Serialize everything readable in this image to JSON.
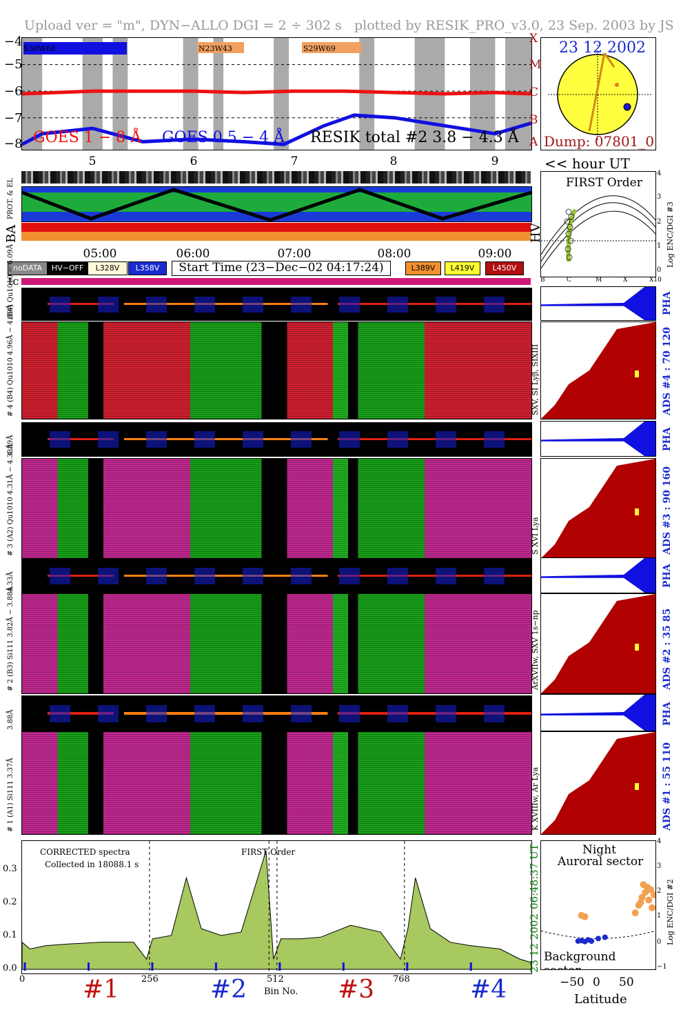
{
  "header": {
    "upload": "Upload ver = \"m\", DYN−ALLO DGI =   2 ÷ 302 s",
    "plotted": "plotted by RESIK_PRO_v3.0, 23 Sep. 2003 by JS"
  },
  "goes": {
    "yticks": [
      "−4",
      "−5",
      "−6",
      "−7",
      "−8"
    ],
    "classes": [
      "X",
      "M",
      "C",
      "B",
      "A"
    ],
    "legend_goes1": "GOES 1 − 8 Å",
    "legend_goes05": "GOES 0.5 − 4 Å",
    "legend_resik": "RESIK total #2  3.8 − 4.3 Å",
    "regions": [
      "S30W68",
      "N23W43",
      "S29W69"
    ],
    "colors": {
      "goes1": "#ee1111",
      "goes05": "#1010e0",
      "resik": "#9cc23c",
      "orange": "#f2a060"
    }
  },
  "sun": {
    "date": "23 12 2002",
    "dump": "Dump: 07801_0"
  },
  "hours": [
    "5",
    "6",
    "7",
    "8",
    "9"
  ],
  "hour_ut_label": "<< hour UT",
  "orbit_labels": {
    "prot_el": "PROT. & EL",
    "ba": "BA",
    "hv": "HV"
  },
  "times": [
    "05:00",
    "06:00",
    "07:00",
    "08:00",
    "09:00"
  ],
  "keys": {
    "nodata": "noDATA",
    "hvoff": "HV−OFF",
    "v328": "L328V",
    "v358": "L358V",
    "v389": "L389V",
    "v419": "L419V",
    "v450": "L450V",
    "start_time": "Start Time (23−Dec−02 04:17:24)"
  },
  "tc_label": "tc",
  "first_order": {
    "title": "FIRST Order",
    "ylabel": "Log ENC/DGI #3",
    "yticks": [
      "0",
      "1",
      "2",
      "3",
      "4"
    ],
    "xticks": [
      "B",
      "C",
      "M",
      "X",
      "X10"
    ]
  },
  "channels": [
    {
      "pha_label": "(B4) Qu1010 − 6.09Å",
      "label": "# 4 (B4) Qu1010 4.96Å − 4.89Å",
      "lines": "SXV, SI Lyβ, SIXIII",
      "ads": "ADS #4 :   70 120",
      "pha": "PHA"
    },
    {
      "pha_label": "4.89Å",
      "label": "# 3 (A2) Qu1010 4.31Å − 4.33Å",
      "lines": "S XVI Lya",
      "ads": "ADS #3 :   90 160",
      "pha": "PHA"
    },
    {
      "pha_label": "4.33Å",
      "label": "# 2 (B3) Si111 3.82Å − 3.88Å",
      "lines": "ArXVIIw, SXV 1s−np",
      "ads": "ADS #2 :   35  85",
      "pha": "PHA"
    },
    {
      "pha_label": "3.88Å",
      "label": "# 1 (A1) Si111 3.37Å",
      "lines": "K XVIIIw, Ar Lya",
      "ads": "ADS #1 :   55 110",
      "pha": "PHA"
    }
  ],
  "spectra": {
    "note1": "CORRECTED spectra",
    "note2": "Collected in 18088.1 s",
    "order": "FIRST Order",
    "yticks": [
      "0.0",
      "0.1",
      "0.2",
      "0.3"
    ],
    "xticks": [
      "0",
      "256",
      "512",
      "768"
    ],
    "xlabel": "Bin No.",
    "time": "06:48:37 UT",
    "date": "23 12 2002"
  },
  "channel_numbers": [
    "#1",
    "#2",
    "#3",
    "#4"
  ],
  "aurora": {
    "night": "Night",
    "auroral": "Auroral sector",
    "background": "Background sector",
    "xlabel": "Latitude",
    "xticks": [
      "−50",
      "0",
      "50"
    ],
    "ylabel": "Log ENC/DGI #2",
    "yticks": [
      "−1",
      "0",
      "1",
      "2",
      "3",
      "4"
    ]
  },
  "chart_data": [
    {
      "type": "line",
      "title": "",
      "x_range": [
        4.3,
        9.36
      ],
      "ylim": [
        -8.2,
        -4
      ],
      "ylabel": "",
      "series": [
        {
          "name": "GOES 1 − 8 Å",
          "x": [
            4.3,
            5.0,
            5.5,
            6.0,
            6.5,
            7.0,
            7.5,
            8.0,
            8.5,
            9.0,
            9.36
          ],
          "y": [
            -6.1,
            -6.0,
            -6.0,
            -6.0,
            -6.05,
            -6.0,
            -6.0,
            -6.05,
            -6.1,
            -6.05,
            -6.1
          ]
        },
        {
          "name": "GOES 0.5 − 4 Å",
          "x": [
            4.3,
            4.5,
            5.0,
            5.5,
            6.0,
            6.5,
            6.9,
            7.3,
            7.6,
            8.0,
            8.5,
            9.0,
            9.36
          ],
          "y": [
            -8.0,
            -7.6,
            -7.4,
            -7.9,
            -7.8,
            -7.9,
            -8.0,
            -7.3,
            -6.9,
            -7.0,
            -7.3,
            -7.6,
            -7.2
          ]
        }
      ],
      "legend": "bottom"
    },
    {
      "type": "line",
      "title": "",
      "xlabel": "Bin No.",
      "ylim": [
        0,
        0.35
      ],
      "x": [
        0,
        16,
        48,
        96,
        160,
        224,
        250,
        262,
        300,
        330,
        360,
        400,
        440,
        490,
        505,
        520,
        560,
        600,
        660,
        720,
        760,
        775,
        790,
        820,
        860,
        900,
        960,
        1000,
        1023
      ],
      "values": [
        0.08,
        0.06,
        0.07,
        0.075,
        0.08,
        0.08,
        0.03,
        0.09,
        0.1,
        0.27,
        0.12,
        0.1,
        0.11,
        0.35,
        0.03,
        0.09,
        0.09,
        0.095,
        0.13,
        0.11,
        0.03,
        0.12,
        0.27,
        0.12,
        0.08,
        0.07,
        0.06,
        0.03,
        0.02
      ]
    },
    {
      "type": "scatter",
      "title": "",
      "xlabel": "Latitude",
      "ylabel": "Log ENC/DGI #2",
      "xlim": [
        -80,
        90
      ],
      "ylim": [
        -1,
        4
      ],
      "series": [
        {
          "name": "Auroral sector",
          "x": [
            -20,
            -15,
            60,
            65,
            70,
            75,
            78,
            80,
            83,
            85,
            88,
            72,
            68
          ],
          "y": [
            1.1,
            1.05,
            1.2,
            1.5,
            1.8,
            2.0,
            2.2,
            1.7,
            2.1,
            1.4,
            1.9,
            2.3,
            1.6
          ]
        },
        {
          "name": "Background sector",
          "x": [
            -25,
            -20,
            -15,
            -10,
            -5,
            5,
            15
          ],
          "y": [
            0.1,
            0.12,
            0.08,
            0.15,
            0.1,
            0.2,
            0.25
          ]
        }
      ]
    }
  ]
}
